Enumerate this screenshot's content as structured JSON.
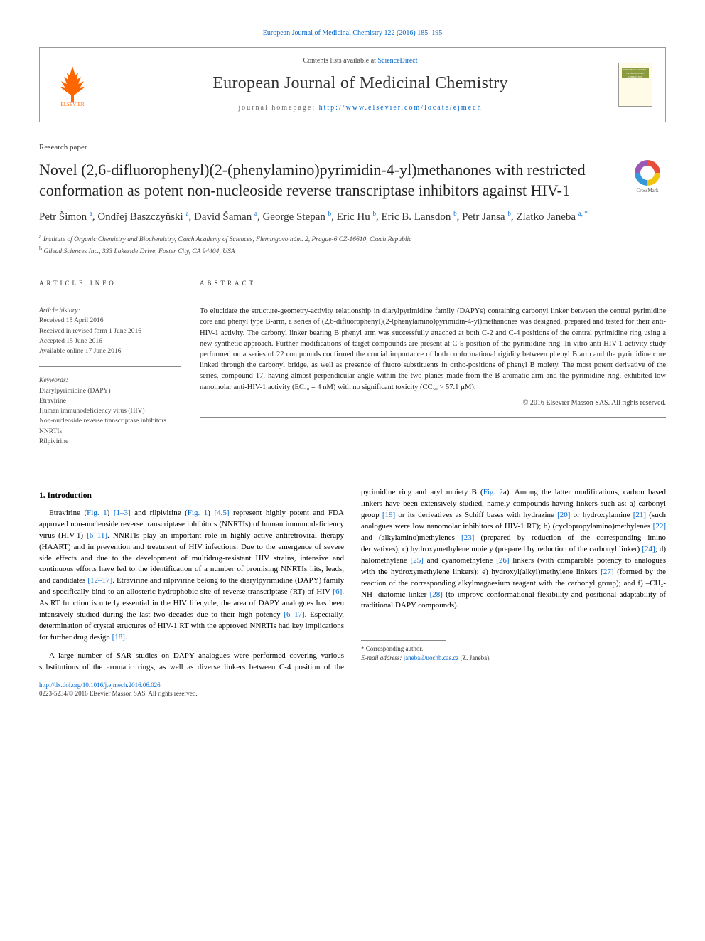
{
  "header": {
    "top_link": "European Journal of Medicinal Chemistry 122 (2016) 185–195",
    "contents_prefix": "Contents lists available at ",
    "contents_link": "ScienceDirect",
    "journal_name": "European Journal of Medicinal Chemistry",
    "homepage_prefix": "journal homepage: ",
    "homepage_url": "http://www.elsevier.com/locate/ejmech",
    "cover_label": "EUROPEAN JOURNAL OF MEDICINAL CHEMISTRY",
    "crossmark_label": "CrossMark"
  },
  "paper_type": "Research paper",
  "title": "Novel (2,6-difluorophenyl)(2-(phenylamino)pyrimidin-4-yl)methanones with restricted conformation as potent non-nucleoside reverse transcriptase inhibitors against HIV-1",
  "authors_html": "Petr Šimon <sup>a</sup>, Ondřej Baszczyňski <sup>a</sup>, David Šaman <sup>a</sup>, George Stepan <sup>b</sup>, Eric Hu <sup>b</sup>, Eric B. Lansdon <sup>b</sup>, Petr Jansa <sup>b</sup>, Zlatko Janeba <sup>a, *</sup>",
  "affiliations": [
    {
      "sup": "a",
      "text": "Institute of Organic Chemistry and Biochemistry, Czech Academy of Sciences, Flemingovo nám. 2, Prague-6 CZ-16610, Czech Republic"
    },
    {
      "sup": "b",
      "text": "Gilead Sciences Inc., 333 Lakeside Drive, Foster City, CA 94404, USA"
    }
  ],
  "article_info": {
    "heading": "ARTICLE INFO",
    "history_label": "Article history:",
    "history": [
      "Received 15 April 2016",
      "Received in revised form 1 June 2016",
      "Accepted 15 June 2016",
      "Available online 17 June 2016"
    ],
    "keywords_label": "Keywords:",
    "keywords": [
      "Diarylpyrimidine (DAPY)",
      "Etravirine",
      "Human immunodeficiency virus (HIV)",
      "Non-nucleoside reverse transcriptase inhibitors",
      "NNRTIs",
      "Rilpivirine"
    ]
  },
  "abstract": {
    "heading": "ABSTRACT",
    "text": "To elucidate the structure-geometry-activity relationship in diarylpyrimidine family (DAPYs) containing carbonyl linker between the central pyrimidine core and phenyl type B-arm, a series of (2,6-difluorophenyl)(2-(phenylamino)pyrimidin-4-yl)methanones was designed, prepared and tested for their anti-HIV-1 activity. The carbonyl linker bearing B phenyl arm was successfully attached at both C-2 and C-4 positions of the central pyrimidine ring using a new synthetic approach. Further modifications of target compounds are present at C-5 position of the pyrimidine ring. In vitro anti-HIV-1 activity study performed on a series of 22 compounds confirmed the crucial importance of both conformational rigidity between phenyl B arm and the pyrimidine core linked through the carbonyl bridge, as well as presence of fluoro substituents in ortho-positions of phenyl B moiety. The most potent derivative of the series, compound 17, having almost perpendicular angle within the two planes made from the B aromatic arm and the pyrimidine ring, exhibited low nanomolar anti-HIV-1 activity (EC₅₀ = 4 nM) with no significant toxicity (CC₅₀ > 57.1 µM).",
    "copyright": "© 2016 Elsevier Masson SAS. All rights reserved."
  },
  "intro": {
    "heading": "1. Introduction",
    "p1_pre": "Etravirine (",
    "p1_fig1a": "Fig. 1",
    "p1_mid1": ") ",
    "p1_ref1": "[1–3]",
    "p1_mid2": " and rilpivirine (",
    "p1_fig1b": "Fig. 1",
    "p1_mid3": ") ",
    "p1_ref2": "[4,5]",
    "p1_mid4": " represent highly potent and FDA approved non-nucleoside reverse transcriptase inhibitors (NNRTIs) of human immunodeficiency virus (HIV-1) ",
    "p1_ref3": "[6–11]",
    "p1_mid5": ". NNRTIs play an important role in highly active antiretroviral therapy (HAART) and in prevention and treatment of HIV infections. Due to the emergence of severe side effects and due to the development of multidrug-resistant HIV strains, intensive and continuous efforts have led to the identification of a number of promising NNRTIs hits, leads, and candidates ",
    "p1_ref4": "[12–17]",
    "p1_mid6": ". Etravirine and rilpivirine belong to the diarylpyrimidine (DAPY) family and specifically bind to an allosteric hydrophobic site of reverse transcriptase (RT) of HIV ",
    "p1_ref5": "[6]",
    "p1_mid7": ". As RT function is utterly essential in the HIV lifecycle, the area of DAPY analogues has been intensively studied during the last two decades due to their high potency ",
    "p1_ref6": "[6–17]",
    "p1_mid8": ". Especially, determination of crystal structures of HIV-1 RT with the approved NNRTIs had key implications for further drug design ",
    "p1_ref7": "[18]",
    "p1_end": ".",
    "p2_pre": "A large number of SAR studies on DAPY analogues were performed covering various substitutions of the aromatic rings, as well as diverse linkers between C-4 position of the pyrimidine ring and aryl moiety B (",
    "p2_fig": "Fig. 2",
    "p2_mid1": "a). Among the latter modifications, carbon based linkers have been extensively studied, namely compounds having linkers such as: a) carbonyl group ",
    "p2_ref1": "[19]",
    "p2_mid2": " or its derivatives as Schiff bases with hydrazine ",
    "p2_ref2": "[20]",
    "p2_mid3": " or hydroxylamine ",
    "p2_ref3": "[21]",
    "p2_mid4": " (such analogues were low nanomolar inhibitors of HIV-1 RT); b) (cyclopropylamino)methylenes ",
    "p2_ref4": "[22]",
    "p2_mid5": " and (alkylamino)methylenes ",
    "p2_ref5": "[23]",
    "p2_mid6": " (prepared by reduction of the corresponding imino derivatives); c) hydroxymethylene moiety (prepared by reduction of the carbonyl linker) ",
    "p2_ref6": "[24]",
    "p2_mid7": "; d) halomethylene ",
    "p2_ref7": "[25]",
    "p2_mid8": " and cyanomethylene ",
    "p2_ref8": "[26]",
    "p2_mid9": " linkers (with comparable potency to analogues with the hydroxymethylene linkers); e) hydroxyl(alkyl)methylene linkers ",
    "p2_ref9": "[27]",
    "p2_mid10": " (formed by the reaction of the corresponding alkylmagnesium reagent with the carbonyl group); and f) –CH₂-NH- diatomic linker ",
    "p2_ref10": "[28]",
    "p2_mid11": " (to improve conformational flexibility and positional adaptability of traditional DAPY compounds)."
  },
  "footnotes": {
    "corresp": "* Corresponding author.",
    "email_label": "E-mail address: ",
    "email": "janeba@uochb.cas.cz",
    "email_author": " (Z. Janeba)."
  },
  "doi": "http://dx.doi.org/10.1016/j.ejmech.2016.06.026",
  "bottom_copy": "0223-5234/© 2016 Elsevier Masson SAS. All rights reserved.",
  "colors": {
    "link": "#0066cc",
    "text": "#222222",
    "muted": "#666666",
    "border": "#999999",
    "elsevier_orange": "#ff6600"
  }
}
